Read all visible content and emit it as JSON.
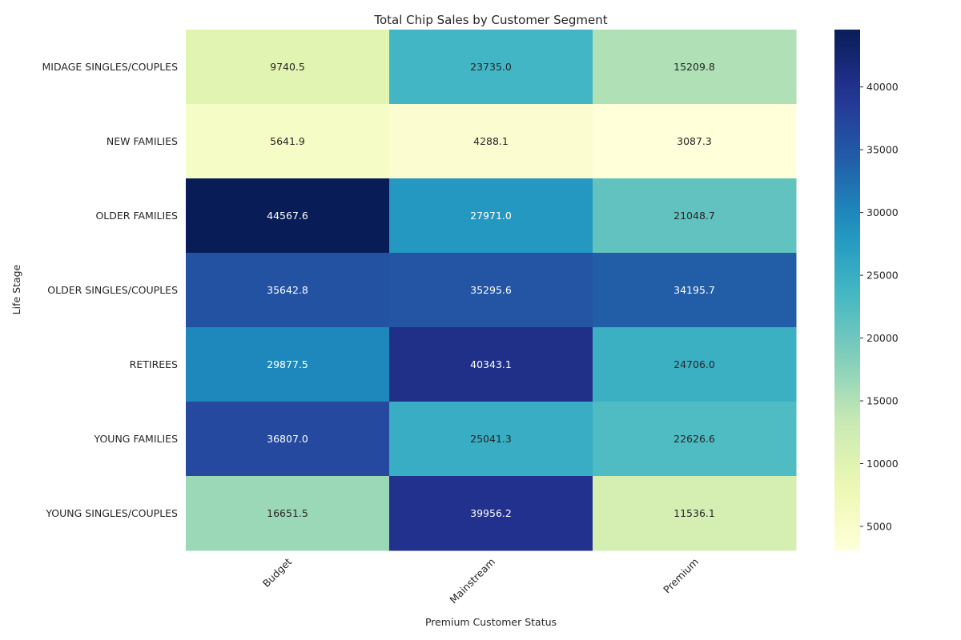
{
  "chart_data": {
    "type": "heatmap",
    "title": "Total Chip Sales by Customer Segment",
    "xlabel": "Premium Customer Status",
    "ylabel": "Life Stage",
    "x": [
      "Budget",
      "Mainstream",
      "Premium"
    ],
    "y": [
      "MIDAGE SINGLES/COUPLES",
      "NEW FAMILIES",
      "OLDER FAMILIES",
      "OLDER SINGLES/COUPLES",
      "RETIREES",
      "YOUNG FAMILIES",
      "YOUNG SINGLES/COUPLES"
    ],
    "values": [
      [
        9740.5,
        23735.0,
        15209.8
      ],
      [
        5641.9,
        4288.1,
        3087.3
      ],
      [
        44567.6,
        27971.0,
        21048.7
      ],
      [
        35642.8,
        35295.6,
        34195.7
      ],
      [
        29877.5,
        40343.1,
        24706.0
      ],
      [
        36807.0,
        25041.3,
        22626.6
      ],
      [
        16651.5,
        39956.2,
        11536.1
      ]
    ],
    "value_labels": [
      [
        "9740.5",
        "23735.0",
        "15209.8"
      ],
      [
        "5641.9",
        "4288.1",
        "3087.3"
      ],
      [
        "44567.6",
        "27971.0",
        "21048.7"
      ],
      [
        "35642.8",
        "35295.6",
        "34195.7"
      ],
      [
        "29877.5",
        "40343.1",
        "24706.0"
      ],
      [
        "36807.0",
        "25041.3",
        "22626.6"
      ],
      [
        "16651.5",
        "39956.2",
        "11536.1"
      ]
    ],
    "colorscale": "YlGnBu",
    "color_range": [
      3087.3,
      44567.6
    ],
    "colorbar_ticks": [
      5000,
      10000,
      15000,
      20000,
      25000,
      30000,
      35000,
      40000
    ],
    "colorbar_tick_labels": [
      "5000",
      "10000",
      "15000",
      "20000",
      "25000",
      "30000",
      "35000",
      "40000"
    ],
    "colors": {
      "dark_text": "#262626",
      "light_text": "#ffffff",
      "axis_text": "#262626"
    }
  }
}
